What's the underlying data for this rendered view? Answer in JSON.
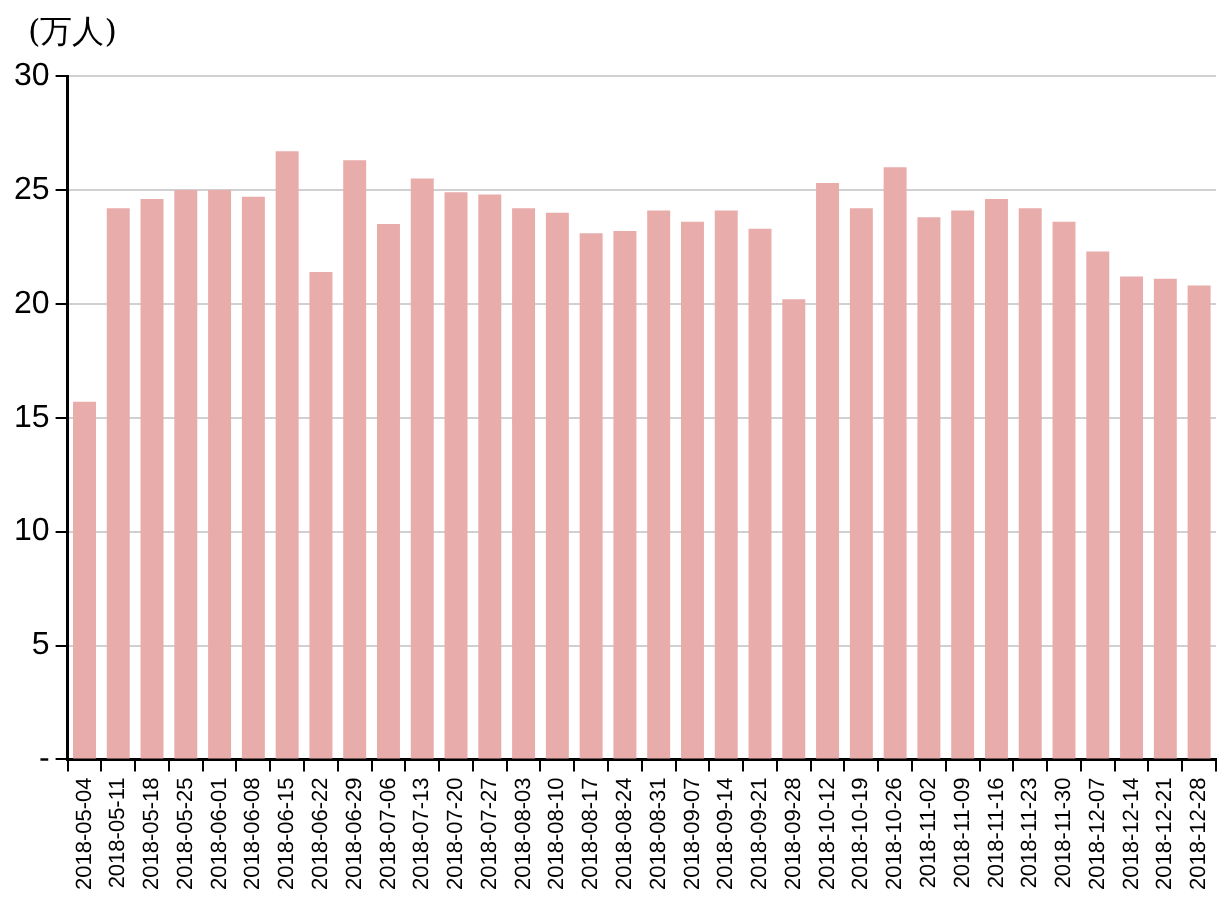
{
  "chart_data": {
    "type": "bar",
    "ylabel": "(万人)",
    "categories": [
      "2018-05-04",
      "2018-05-11",
      "2018-05-18",
      "2018-05-25",
      "2018-06-01",
      "2018-06-08",
      "2018-06-15",
      "2018-06-22",
      "2018-06-29",
      "2018-07-06",
      "2018-07-13",
      "2018-07-20",
      "2018-07-27",
      "2018-08-03",
      "2018-08-10",
      "2018-08-17",
      "2018-08-24",
      "2018-08-31",
      "2018-09-07",
      "2018-09-14",
      "2018-09-21",
      "2018-09-28",
      "2018-10-12",
      "2018-10-19",
      "2018-10-26",
      "2018-11-02",
      "2018-11-09",
      "2018-11-16",
      "2018-11-23",
      "2018-11-30",
      "2018-12-07",
      "2018-12-14",
      "2018-12-21",
      "2018-12-28"
    ],
    "values": [
      15.7,
      24.2,
      24.6,
      25.0,
      25.0,
      24.7,
      26.7,
      21.4,
      26.3,
      23.5,
      25.5,
      24.9,
      24.8,
      24.2,
      24.0,
      23.1,
      23.2,
      24.1,
      23.6,
      24.1,
      23.3,
      20.2,
      25.3,
      24.2,
      26.0,
      23.8,
      24.1,
      24.6,
      24.2,
      23.6,
      22.3,
      21.2,
      21.1,
      20.8
    ],
    "color": "#e8acab",
    "ylim": [
      0,
      30
    ],
    "yticks": [
      {
        "value": 0,
        "label": "-"
      },
      5,
      10,
      15,
      20,
      25,
      30
    ],
    "grid": "y",
    "legend": false
  }
}
